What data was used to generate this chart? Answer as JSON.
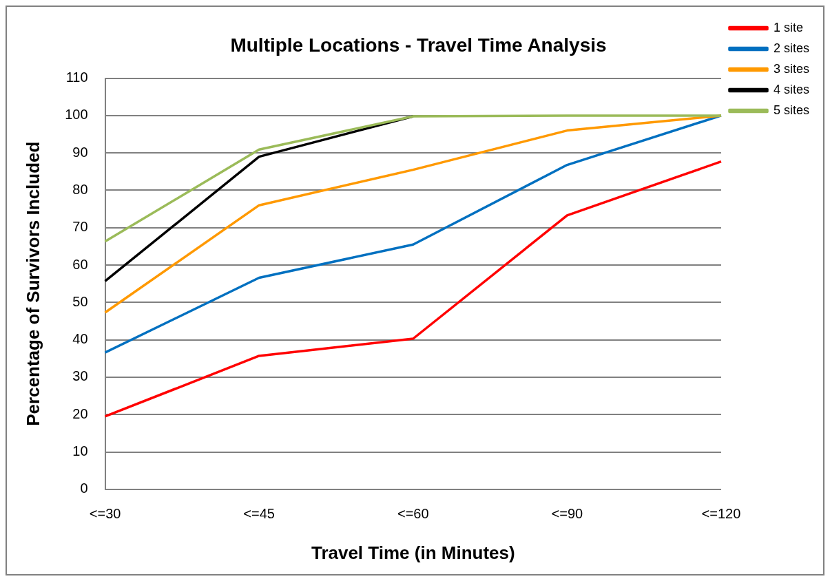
{
  "chart_data": {
    "type": "line",
    "title": "Multiple Locations - Travel Time Analysis",
    "xlabel": "Travel Time (in Minutes)",
    "ylabel": "Percentage of Survivors Included",
    "categories": [
      "<=30",
      "<=45",
      "<=60",
      "<=90",
      "<=120"
    ],
    "series": [
      {
        "name": "1 site",
        "color": "#ff0000",
        "values": [
          19.5,
          35.7,
          40.3,
          73.3,
          87.7
        ]
      },
      {
        "name": "2 sites",
        "color": "#0070c0",
        "values": [
          36.6,
          56.6,
          65.5,
          86.8,
          100
        ]
      },
      {
        "name": "3 sites",
        "color": "#ff9900",
        "values": [
          47.3,
          76.0,
          85.5,
          96.0,
          100
        ]
      },
      {
        "name": "4 sites",
        "color": "#000000",
        "values": [
          55.7,
          89.0,
          99.8,
          null,
          null
        ]
      },
      {
        "name": "5 sites",
        "color": "#9bbb59",
        "values": [
          66.3,
          90.9,
          99.8,
          100,
          100
        ]
      }
    ],
    "ylim": [
      0,
      110
    ],
    "yticks": [
      0,
      10,
      20,
      30,
      40,
      50,
      60,
      70,
      80,
      90,
      100,
      110
    ],
    "grid": "y",
    "legend": "top right",
    "marker": "none",
    "line_style": "solid"
  }
}
